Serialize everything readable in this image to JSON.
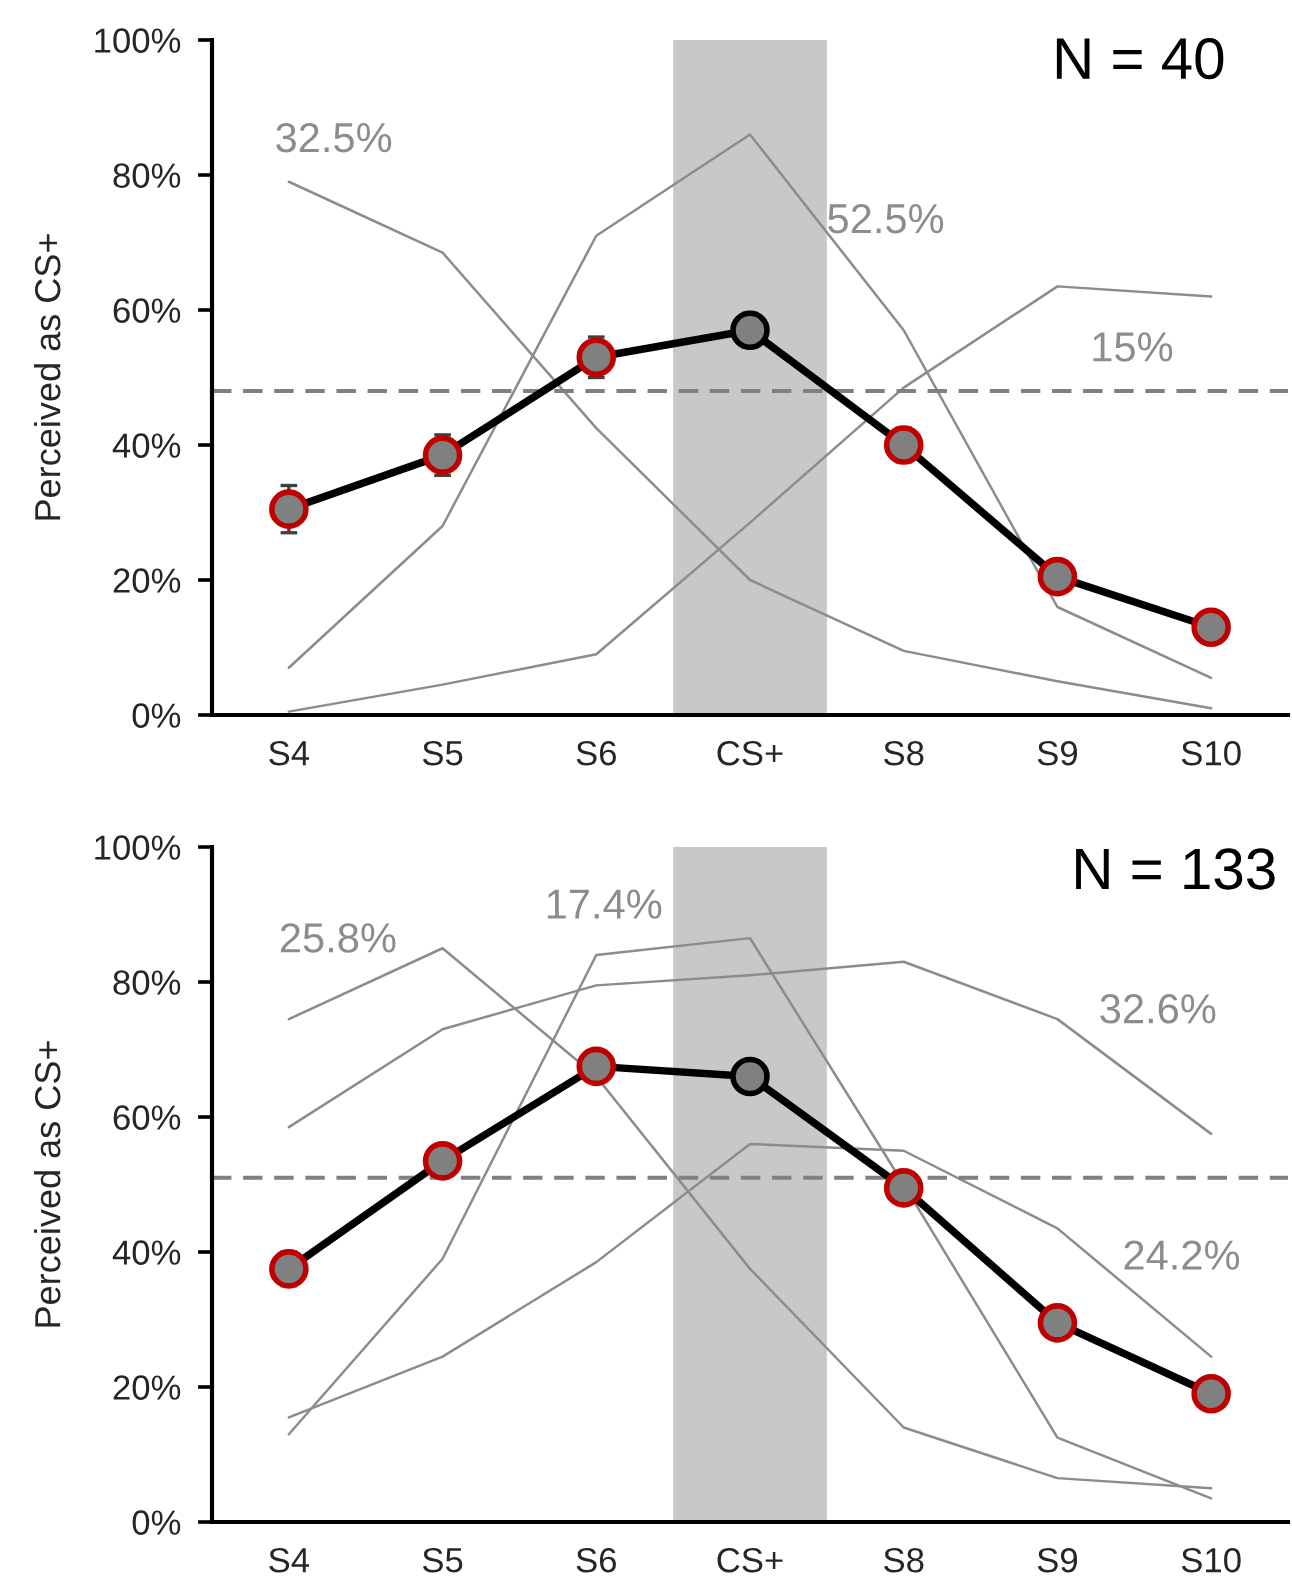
{
  "chart_data": [
    {
      "type": "line",
      "categories": [
        "S4",
        "S5",
        "S6",
        "CS+",
        "S8",
        "S9",
        "S10"
      ],
      "ylabel": "Perceived as CS+",
      "ylim": [
        0,
        100
      ],
      "yticks": [
        {
          "value": 0,
          "label": "0%"
        },
        {
          "value": 20,
          "label": "20%"
        },
        {
          "value": 40,
          "label": "40%"
        },
        {
          "value": 60,
          "label": "60%"
        },
        {
          "value": 80,
          "label": "80%"
        },
        {
          "value": 100,
          "label": "100%"
        }
      ],
      "series": [
        {
          "color": "#8c8c8c",
          "marker": "none",
          "values": [
            79,
            68.5,
            42.5,
            20,
            9.5,
            5,
            1
          ]
        },
        {
          "color": "#8c8c8c",
          "marker": "none",
          "values": [
            7,
            28,
            71,
            86,
            57,
            16,
            5.5
          ]
        },
        {
          "color": "#8c8c8c",
          "marker": "none",
          "values": [
            0.5,
            4.5,
            9,
            28.5,
            48.5,
            63.5,
            62
          ]
        },
        {
          "color": "#000000",
          "marker": "circle",
          "colors": [
            "#c00000",
            "#c00000",
            "#c00000",
            "#000000",
            "#c00000",
            "#c00000",
            "#c00000"
          ],
          "values": [
            30.5,
            38.5,
            53,
            57,
            40,
            20.5,
            13
          ],
          "errors": [
            3.5,
            3,
            3,
            2.5,
            2.5,
            1.5,
            1.5
          ]
        }
      ],
      "ref_lines": [
        {
          "axis": "y",
          "value": 48,
          "color": "#808080",
          "line_style": "dashed"
        }
      ],
      "bands": [
        {
          "axis": "x",
          "from": "CS+",
          "to": "CS+",
          "color": "#c8c8c8"
        }
      ],
      "annotations": [
        "32.5%",
        "52.5%",
        "15%",
        "N = 40"
      ]
    },
    {
      "type": "line",
      "categories": [
        "S4",
        "S5",
        "S6",
        "CS+",
        "S8",
        "S9",
        "S10"
      ],
      "ylabel": "Perceived as CS+",
      "ylim": [
        0,
        100
      ],
      "yticks": [
        {
          "value": 0,
          "label": "0%"
        },
        {
          "value": 20,
          "label": "20%"
        },
        {
          "value": 40,
          "label": "40%"
        },
        {
          "value": 60,
          "label": "60%"
        },
        {
          "value": 80,
          "label": "80%"
        },
        {
          "value": 100,
          "label": "100%"
        }
      ],
      "series": [
        {
          "color": "#8c8c8c",
          "marker": "none",
          "values": [
            74.5,
            85,
            66,
            37.5,
            14,
            6.5,
            5
          ]
        },
        {
          "color": "#8c8c8c",
          "marker": "none",
          "values": [
            13,
            39,
            84,
            86.5,
            50,
            12.5,
            3.5
          ]
        },
        {
          "color": "#8c8c8c",
          "marker": "none",
          "values": [
            58.5,
            73,
            79.5,
            81,
            83,
            74.5,
            57.5
          ]
        },
        {
          "color": "#8c8c8c",
          "marker": "none",
          "values": [
            15.5,
            24.5,
            38.5,
            56,
            55,
            43.5,
            24.5
          ]
        },
        {
          "color": "#000000",
          "marker": "circle",
          "colors": [
            "#c00000",
            "#c00000",
            "#c00000",
            "#000000",
            "#c00000",
            "#c00000",
            "#c00000"
          ],
          "values": [
            37.5,
            53.5,
            67.5,
            66,
            49.5,
            29.5,
            19
          ],
          "errors": [
            2.5,
            2,
            2,
            1.5,
            1.5,
            1.5,
            1.5
          ]
        }
      ],
      "ref_lines": [
        {
          "axis": "y",
          "value": 51,
          "color": "#808080",
          "line_style": "dashed"
        }
      ],
      "bands": [
        {
          "axis": "x",
          "from": "CS+",
          "to": "CS+",
          "color": "#c8c8c8"
        }
      ],
      "annotations": [
        "25.8%",
        "17.4%",
        "32.6%",
        "24.2%",
        "N = 133"
      ]
    }
  ]
}
